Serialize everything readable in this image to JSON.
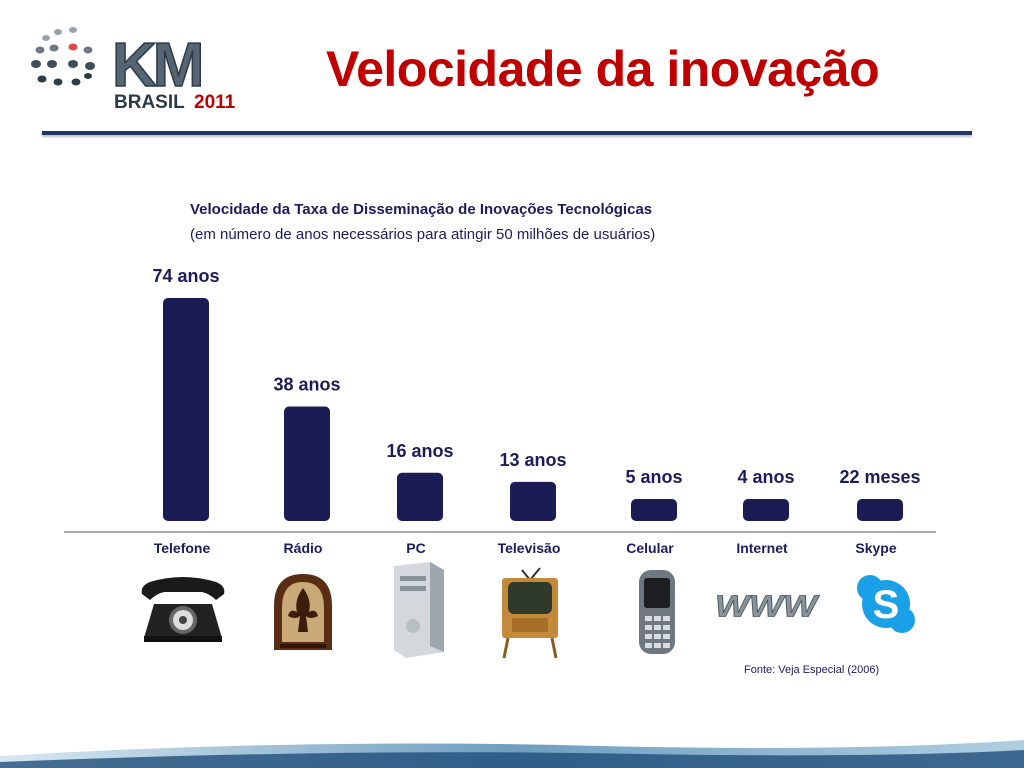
{
  "logo": {
    "line1": "KM",
    "line2": "BRASIL",
    "year": "2011"
  },
  "slide_title": "Velocidade da inovação",
  "chart_data": {
    "type": "bar",
    "title": "Velocidade da Taxa de Disseminação de Inovações Tecnológicas",
    "subtitle": "(em número de anos necessários para atingir 50 milhões de usuários)",
    "categories": [
      "Telefone",
      "Rádio",
      "PC",
      "Televisão",
      "Celular",
      "Internet",
      "Skype"
    ],
    "values": [
      74,
      38,
      16,
      13,
      5,
      4,
      1.83
    ],
    "value_labels": [
      "74 anos",
      "38 anos",
      "16 anos",
      "13 anos",
      "5 anos",
      "4 anos",
      "22 meses"
    ],
    "unit": "anos",
    "bar_color": "#1c1c54",
    "label_color": "#1c1c5c"
  },
  "icons": [
    "telephone-icon",
    "radio-icon",
    "pc-icon",
    "television-icon",
    "cellphone-icon",
    "www-icon",
    "skype-icon"
  ],
  "skype_text": "S",
  "www_text": "WWW",
  "source": "Fonte: Veja Especial (2006)",
  "colors": {
    "title": "#c00000",
    "rule": "#1f3864",
    "text": "#1c1c5c"
  }
}
